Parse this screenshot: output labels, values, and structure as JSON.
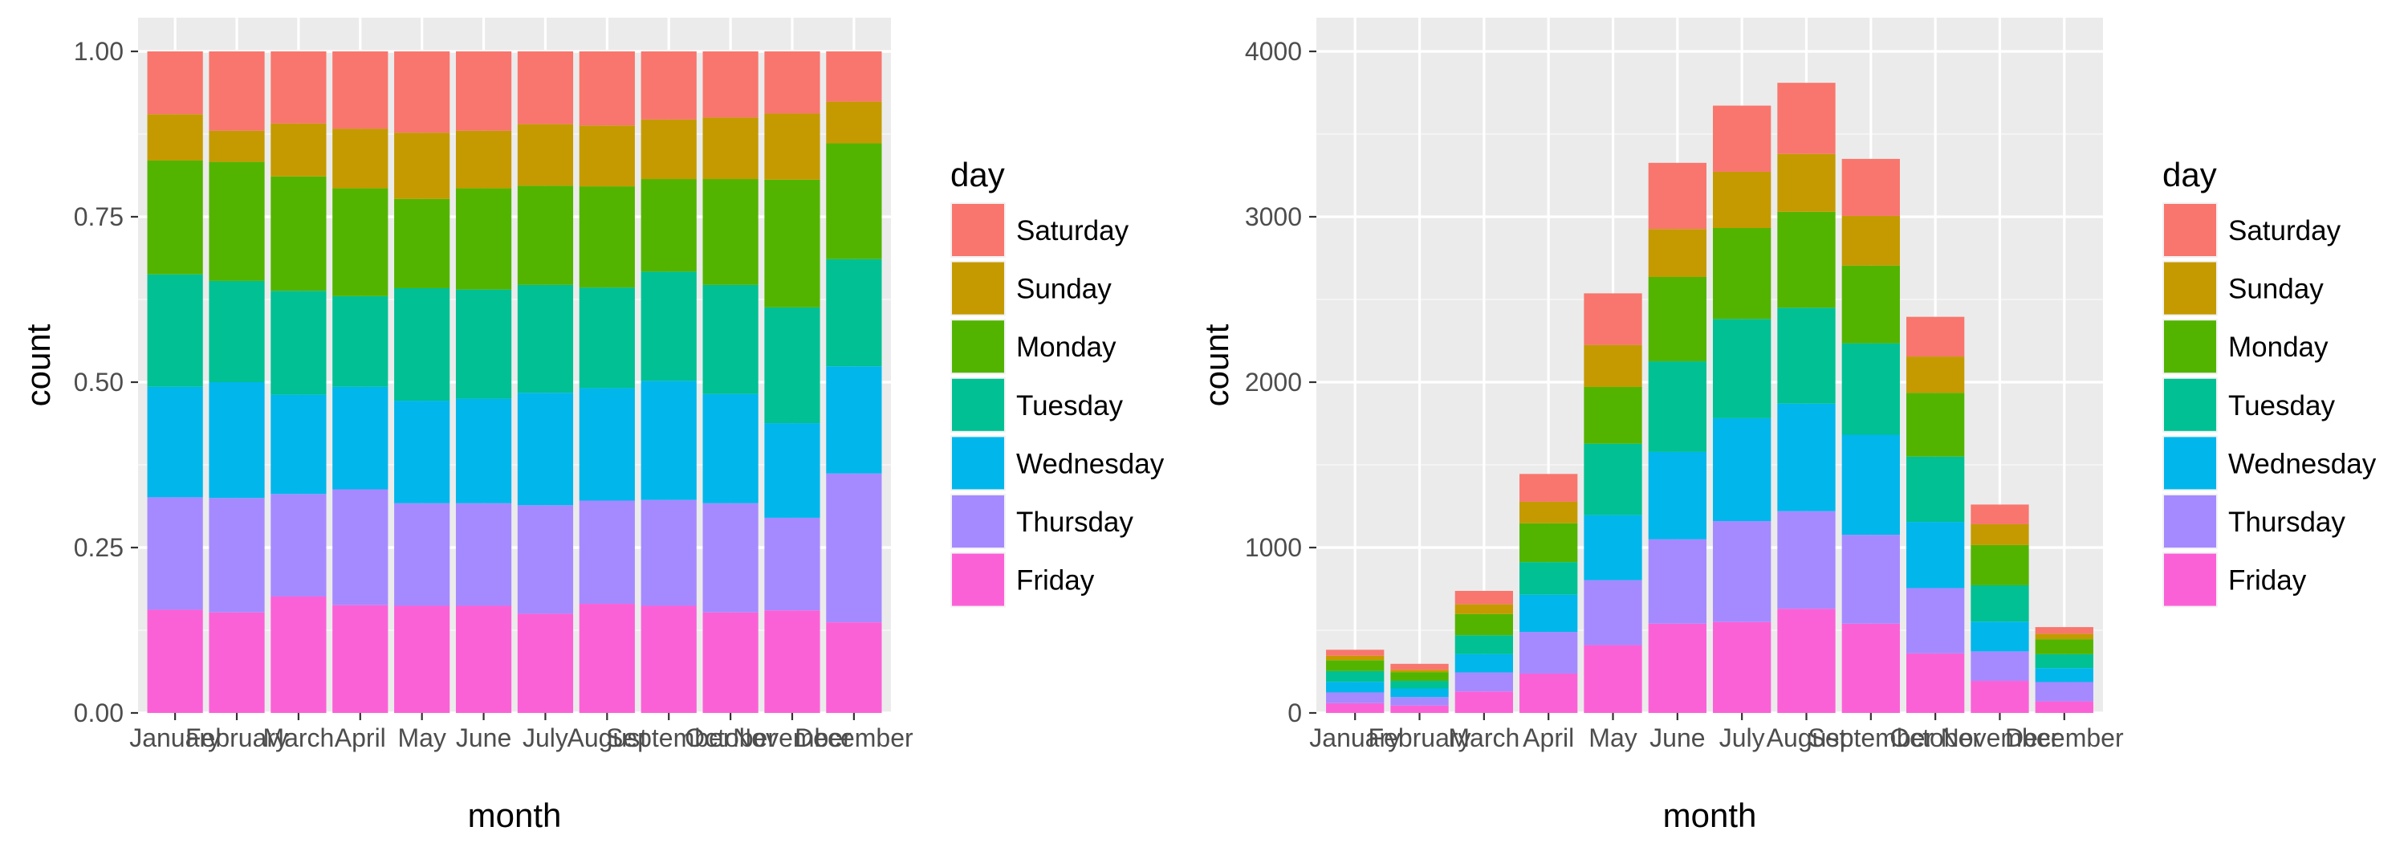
{
  "chart_data": [
    {
      "type": "bar",
      "stacking": "fill",
      "xlabel": "month",
      "ylabel": "count",
      "ylim": [
        0,
        1
      ],
      "yticks": [
        "0.00",
        "0.25",
        "0.50",
        "0.75",
        "1.00"
      ],
      "categories": [
        "January",
        "February",
        "March",
        "April",
        "May",
        "June",
        "July",
        "August",
        "September",
        "October",
        "November",
        "December"
      ],
      "legend": {
        "title": "day",
        "placement": "right"
      },
      "series": [
        {
          "name": "Friday",
          "color": "#F8766D",
          "values": [
            0.156,
            0.152,
            0.176,
            0.163,
            0.162,
            0.162,
            0.15,
            0.165,
            0.162,
            0.152,
            0.155,
            0.137
          ]
        },
        {
          "name": "Thursday",
          "color": "#C49A00",
          "values": [
            0.17,
            0.173,
            0.155,
            0.175,
            0.155,
            0.155,
            0.164,
            0.156,
            0.16,
            0.165,
            0.14,
            0.225
          ]
        },
        {
          "name": "Wednesday",
          "color": "#53B400",
          "values": [
            0.167,
            0.175,
            0.15,
            0.155,
            0.155,
            0.158,
            0.17,
            0.17,
            0.18,
            0.165,
            0.143,
            0.162
          ]
        },
        {
          "name": "Tuesday",
          "color": "#00C094",
          "values": [
            0.17,
            0.153,
            0.157,
            0.137,
            0.17,
            0.165,
            0.163,
            0.152,
            0.165,
            0.165,
            0.175,
            0.162
          ]
        },
        {
          "name": "Monday",
          "color": "#00B6EB",
          "values": [
            0.172,
            0.18,
            0.173,
            0.163,
            0.135,
            0.153,
            0.15,
            0.153,
            0.14,
            0.16,
            0.193,
            0.175
          ]
        },
        {
          "name": "Sunday",
          "color": "#A58AFF",
          "values": [
            0.07,
            0.047,
            0.08,
            0.09,
            0.1,
            0.087,
            0.093,
            0.092,
            0.09,
            0.093,
            0.1,
            0.063
          ]
        },
        {
          "name": "Saturday",
          "color": "#FB61D7",
          "values": [
            0.095,
            0.12,
            0.109,
            0.117,
            0.123,
            0.12,
            0.11,
            0.112,
            0.103,
            0.1,
            0.094,
            0.076
          ]
        }
      ]
    },
    {
      "type": "bar",
      "stacking": "stack",
      "xlabel": "month",
      "ylabel": "count",
      "ylim": [
        0,
        4000
      ],
      "yticks": [
        "0",
        "1000",
        "2000",
        "3000",
        "4000"
      ],
      "categories": [
        "January",
        "February",
        "March",
        "April",
        "May",
        "June",
        "July",
        "August",
        "September",
        "October",
        "November",
        "December"
      ],
      "legend": {
        "title": "day",
        "placement": "right"
      },
      "series": [
        {
          "name": "Friday",
          "color": "#F8766D",
          "values": [
            59,
            45,
            130,
            238,
            410,
            540,
            550,
            630,
            540,
            360,
            194,
            70
          ]
        },
        {
          "name": "Thursday",
          "color": "#C49A00",
          "values": [
            65,
            51,
            115,
            252,
            393,
            510,
            610,
            590,
            537,
            395,
            178,
            117
          ]
        },
        {
          "name": "Wednesday",
          "color": "#53B400",
          "values": [
            64,
            52,
            110,
            225,
            393,
            528,
            622,
            650,
            605,
            400,
            180,
            84
          ]
        },
        {
          "name": "Tuesday",
          "color": "#00C094",
          "values": [
            65,
            46,
            115,
            197,
            432,
            548,
            600,
            580,
            553,
            395,
            220,
            84
          ]
        },
        {
          "name": "Monday",
          "color": "#00B6EB",
          "values": [
            66,
            53,
            128,
            235,
            343,
            510,
            550,
            580,
            470,
            385,
            243,
            91
          ]
        },
        {
          "name": "Sunday",
          "color": "#A58AFF",
          "values": [
            27,
            14,
            59,
            130,
            254,
            290,
            340,
            350,
            300,
            220,
            126,
            33
          ]
        },
        {
          "name": "Saturday",
          "color": "#FB61D7",
          "values": [
            36,
            36,
            81,
            168,
            312,
            400,
            400,
            430,
            345,
            240,
            119,
            40
          ]
        }
      ]
    }
  ]
}
